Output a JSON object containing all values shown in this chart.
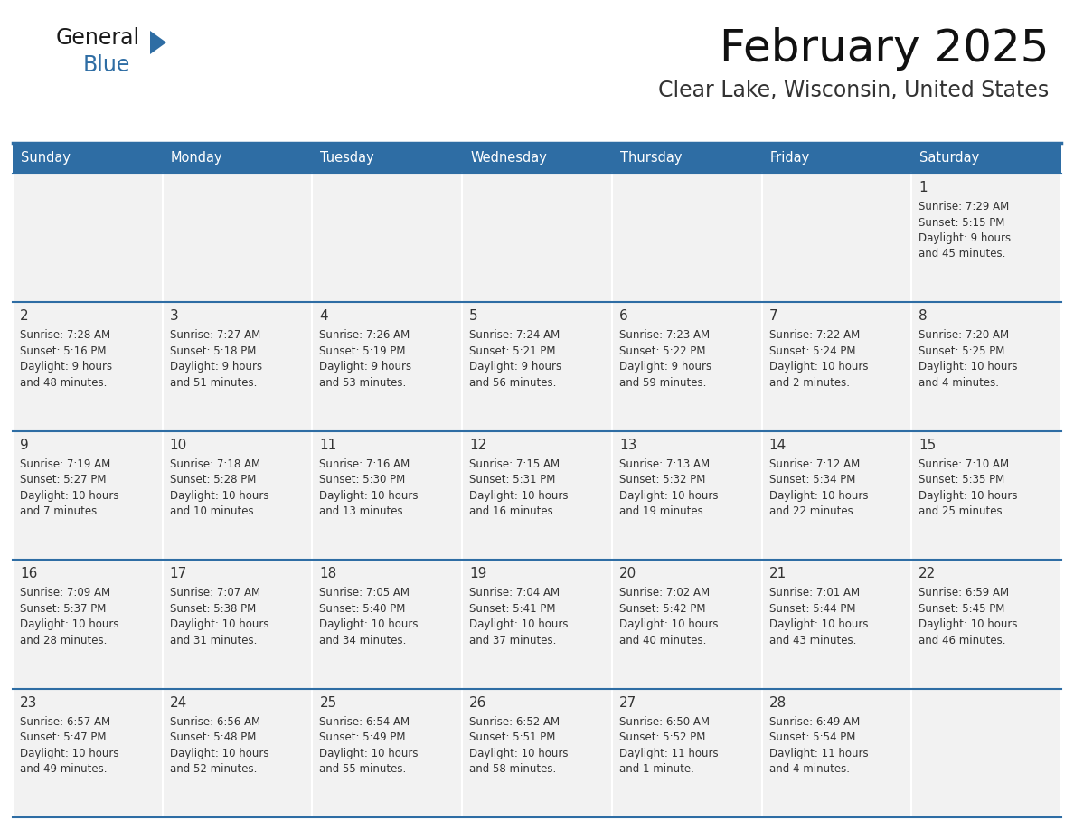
{
  "title": "February 2025",
  "subtitle": "Clear Lake, Wisconsin, United States",
  "header_bg": "#2E6DA4",
  "header_text": "#FFFFFF",
  "cell_bg": "#F2F2F2",
  "border_color": "#2E6DA4",
  "text_color": "#333333",
  "day_headers": [
    "Sunday",
    "Monday",
    "Tuesday",
    "Wednesday",
    "Thursday",
    "Friday",
    "Saturday"
  ],
  "days": [
    {
      "date": 1,
      "col": 6,
      "row": 0,
      "sunrise": "7:29 AM",
      "sunset": "5:15 PM",
      "daylight_line1": "9 hours",
      "daylight_line2": "and 45 minutes."
    },
    {
      "date": 2,
      "col": 0,
      "row": 1,
      "sunrise": "7:28 AM",
      "sunset": "5:16 PM",
      "daylight_line1": "9 hours",
      "daylight_line2": "and 48 minutes."
    },
    {
      "date": 3,
      "col": 1,
      "row": 1,
      "sunrise": "7:27 AM",
      "sunset": "5:18 PM",
      "daylight_line1": "9 hours",
      "daylight_line2": "and 51 minutes."
    },
    {
      "date": 4,
      "col": 2,
      "row": 1,
      "sunrise": "7:26 AM",
      "sunset": "5:19 PM",
      "daylight_line1": "9 hours",
      "daylight_line2": "and 53 minutes."
    },
    {
      "date": 5,
      "col": 3,
      "row": 1,
      "sunrise": "7:24 AM",
      "sunset": "5:21 PM",
      "daylight_line1": "9 hours",
      "daylight_line2": "and 56 minutes."
    },
    {
      "date": 6,
      "col": 4,
      "row": 1,
      "sunrise": "7:23 AM",
      "sunset": "5:22 PM",
      "daylight_line1": "9 hours",
      "daylight_line2": "and 59 minutes."
    },
    {
      "date": 7,
      "col": 5,
      "row": 1,
      "sunrise": "7:22 AM",
      "sunset": "5:24 PM",
      "daylight_line1": "10 hours",
      "daylight_line2": "and 2 minutes."
    },
    {
      "date": 8,
      "col": 6,
      "row": 1,
      "sunrise": "7:20 AM",
      "sunset": "5:25 PM",
      "daylight_line1": "10 hours",
      "daylight_line2": "and 4 minutes."
    },
    {
      "date": 9,
      "col": 0,
      "row": 2,
      "sunrise": "7:19 AM",
      "sunset": "5:27 PM",
      "daylight_line1": "10 hours",
      "daylight_line2": "and 7 minutes."
    },
    {
      "date": 10,
      "col": 1,
      "row": 2,
      "sunrise": "7:18 AM",
      "sunset": "5:28 PM",
      "daylight_line1": "10 hours",
      "daylight_line2": "and 10 minutes."
    },
    {
      "date": 11,
      "col": 2,
      "row": 2,
      "sunrise": "7:16 AM",
      "sunset": "5:30 PM",
      "daylight_line1": "10 hours",
      "daylight_line2": "and 13 minutes."
    },
    {
      "date": 12,
      "col": 3,
      "row": 2,
      "sunrise": "7:15 AM",
      "sunset": "5:31 PM",
      "daylight_line1": "10 hours",
      "daylight_line2": "and 16 minutes."
    },
    {
      "date": 13,
      "col": 4,
      "row": 2,
      "sunrise": "7:13 AM",
      "sunset": "5:32 PM",
      "daylight_line1": "10 hours",
      "daylight_line2": "and 19 minutes."
    },
    {
      "date": 14,
      "col": 5,
      "row": 2,
      "sunrise": "7:12 AM",
      "sunset": "5:34 PM",
      "daylight_line1": "10 hours",
      "daylight_line2": "and 22 minutes."
    },
    {
      "date": 15,
      "col": 6,
      "row": 2,
      "sunrise": "7:10 AM",
      "sunset": "5:35 PM",
      "daylight_line1": "10 hours",
      "daylight_line2": "and 25 minutes."
    },
    {
      "date": 16,
      "col": 0,
      "row": 3,
      "sunrise": "7:09 AM",
      "sunset": "5:37 PM",
      "daylight_line1": "10 hours",
      "daylight_line2": "and 28 minutes."
    },
    {
      "date": 17,
      "col": 1,
      "row": 3,
      "sunrise": "7:07 AM",
      "sunset": "5:38 PM",
      "daylight_line1": "10 hours",
      "daylight_line2": "and 31 minutes."
    },
    {
      "date": 18,
      "col": 2,
      "row": 3,
      "sunrise": "7:05 AM",
      "sunset": "5:40 PM",
      "daylight_line1": "10 hours",
      "daylight_line2": "and 34 minutes."
    },
    {
      "date": 19,
      "col": 3,
      "row": 3,
      "sunrise": "7:04 AM",
      "sunset": "5:41 PM",
      "daylight_line1": "10 hours",
      "daylight_line2": "and 37 minutes."
    },
    {
      "date": 20,
      "col": 4,
      "row": 3,
      "sunrise": "7:02 AM",
      "sunset": "5:42 PM",
      "daylight_line1": "10 hours",
      "daylight_line2": "and 40 minutes."
    },
    {
      "date": 21,
      "col": 5,
      "row": 3,
      "sunrise": "7:01 AM",
      "sunset": "5:44 PM",
      "daylight_line1": "10 hours",
      "daylight_line2": "and 43 minutes."
    },
    {
      "date": 22,
      "col": 6,
      "row": 3,
      "sunrise": "6:59 AM",
      "sunset": "5:45 PM",
      "daylight_line1": "10 hours",
      "daylight_line2": "and 46 minutes."
    },
    {
      "date": 23,
      "col": 0,
      "row": 4,
      "sunrise": "6:57 AM",
      "sunset": "5:47 PM",
      "daylight_line1": "10 hours",
      "daylight_line2": "and 49 minutes."
    },
    {
      "date": 24,
      "col": 1,
      "row": 4,
      "sunrise": "6:56 AM",
      "sunset": "5:48 PM",
      "daylight_line1": "10 hours",
      "daylight_line2": "and 52 minutes."
    },
    {
      "date": 25,
      "col": 2,
      "row": 4,
      "sunrise": "6:54 AM",
      "sunset": "5:49 PM",
      "daylight_line1": "10 hours",
      "daylight_line2": "and 55 minutes."
    },
    {
      "date": 26,
      "col": 3,
      "row": 4,
      "sunrise": "6:52 AM",
      "sunset": "5:51 PM",
      "daylight_line1": "10 hours",
      "daylight_line2": "and 58 minutes."
    },
    {
      "date": 27,
      "col": 4,
      "row": 4,
      "sunrise": "6:50 AM",
      "sunset": "5:52 PM",
      "daylight_line1": "11 hours",
      "daylight_line2": "and 1 minute."
    },
    {
      "date": 28,
      "col": 5,
      "row": 4,
      "sunrise": "6:49 AM",
      "sunset": "5:54 PM",
      "daylight_line1": "11 hours",
      "daylight_line2": "and 4 minutes."
    }
  ],
  "num_rows": 5,
  "num_cols": 7,
  "figwidth": 11.88,
  "figheight": 9.18,
  "dpi": 100
}
